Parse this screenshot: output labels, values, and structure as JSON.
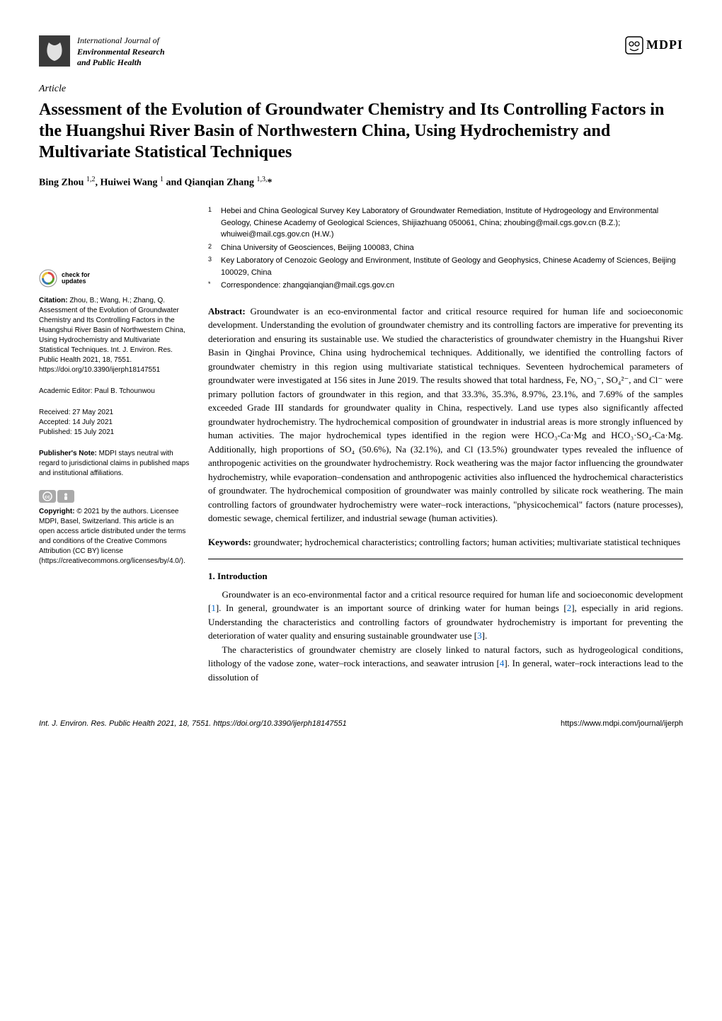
{
  "header": {
    "journal_intl": "International Journal of",
    "journal_name1": "Environmental Research",
    "journal_name2": "and Public Health",
    "publisher": "MDPI"
  },
  "article_label": "Article",
  "title": "Assessment of the Evolution of Groundwater Chemistry and Its Controlling Factors in the Huangshui River Basin of Northwestern China, Using Hydrochemistry and Multivariate Statistical Techniques",
  "authors_html": "Bing Zhou <sup>1,2</sup>, Huiwei Wang <sup>1</sup> and Qianqian Zhang <sup>1,3,</sup>*",
  "affiliations": [
    {
      "num": "1",
      "text": "Hebei and China Geological Survey Key Laboratory of Groundwater Remediation, Institute of Hydrogeology and Environmental Geology, Chinese Academy of Geological Sciences, Shijiazhuang 050061, China; zhoubing@mail.cgs.gov.cn (B.Z.); whuiwei@mail.cgs.gov.cn (H.W.)"
    },
    {
      "num": "2",
      "text": "China University of Geosciences, Beijing 100083, China"
    },
    {
      "num": "3",
      "text": "Key Laboratory of Cenozoic Geology and Environment, Institute of Geology and Geophysics, Chinese Academy of Sciences, Beijing 100029, China"
    },
    {
      "num": "*",
      "text": "Correspondence: zhangqianqian@mail.cgs.gov.cn"
    }
  ],
  "abstract_label": "Abstract:",
  "abstract": "Groundwater is an eco-environmental factor and critical resource required for human life and socioeconomic development. Understanding the evolution of groundwater chemistry and its controlling factors are imperative for preventing its deterioration and ensuring its sustainable use. We studied the characteristics of groundwater chemistry in the Huangshui River Basin in Qinghai Province, China using hydrochemical techniques. Additionally, we identified the controlling factors of groundwater chemistry in this region using multivariate statistical techniques. Seventeen hydrochemical parameters of groundwater were investigated at 156 sites in June 2019. The results showed that total hardness, Fe, NO₃⁻, SO₄²⁻, and Cl⁻ were primary pollution factors of groundwater in this region, and that 33.3%, 35.3%, 8.97%, 23.1%, and 7.69% of the samples exceeded Grade III standards for groundwater quality in China, respectively. Land use types also significantly affected groundwater hydrochemistry. The hydrochemical composition of groundwater in industrial areas is more strongly influenced by human activities. The major hydrochemical types identified in the region were HCO₃-Ca·Mg and HCO₃·SO₄-Ca·Mg. Additionally, high proportions of SO₄ (50.6%), Na (32.1%), and Cl (13.5%) groundwater types revealed the influence of anthropogenic activities on the groundwater hydrochemistry. Rock weathering was the major factor influencing the groundwater hydrochemistry, while evaporation–condensation and anthropogenic activities also influenced the hydrochemical characteristics of groundwater. The hydrochemical composition of groundwater was mainly controlled by silicate rock weathering. The main controlling factors of groundwater hydrochemistry were water–rock interactions, \"physicochemical\" factors (nature processes), domestic sewage, chemical fertilizer, and industrial sewage (human activities).",
  "keywords_label": "Keywords:",
  "keywords": "groundwater; hydrochemical characteristics; controlling factors; human activities; multivariate statistical techniques",
  "left": {
    "check_line1": "check for",
    "check_line2": "updates",
    "citation_label": "Citation:",
    "citation": "Zhou, B.; Wang, H.; Zhang, Q. Assessment of the Evolution of Groundwater Chemistry and Its Controlling Factors in the Huangshui River Basin of Northwestern China, Using Hydrochemistry and Multivariate Statistical Techniques. Int. J. Environ. Res. Public Health 2021, 18, 7551. https://doi.org/10.3390/ijerph18147551",
    "editor_label": "Academic Editor:",
    "editor": "Paul B. Tchounwou",
    "received_label": "Received:",
    "received": "27 May 2021",
    "accepted_label": "Accepted:",
    "accepted": "14 July 2021",
    "published_label": "Published:",
    "published": "15 July 2021",
    "pubnote_label": "Publisher's Note:",
    "pubnote": "MDPI stays neutral with regard to jurisdictional claims in published maps and institutional affiliations.",
    "copyright_label": "Copyright:",
    "copyright": "© 2021 by the authors. Licensee MDPI, Basel, Switzerland. This article is an open access article distributed under the terms and conditions of the Creative Commons Attribution (CC BY) license (https://creativecommons.org/licenses/by/4.0/)."
  },
  "section1_title": "1. Introduction",
  "para1": "Groundwater is an eco-environmental factor and a critical resource required for human life and socioeconomic development [1]. In general, groundwater is an important source of drinking water for human beings [2], especially in arid regions. Understanding the characteristics and controlling factors of groundwater hydrochemistry is important for preventing the deterioration of water quality and ensuring sustainable groundwater use [3].",
  "para2": "The characteristics of groundwater chemistry are closely linked to natural factors, such as hydrogeological conditions, lithology of the vadose zone, water–rock interactions, and seawater intrusion [4]. In general, water–rock interactions lead to the dissolution of",
  "footer": {
    "left": "Int. J. Environ. Res. Public Health 2021, 18, 7551. https://doi.org/10.3390/ijerph18147551",
    "right": "https://www.mdpi.com/journal/ijerph"
  },
  "colors": {
    "ref_link": "#0066cc",
    "text": "#000000",
    "bg": "#ffffff",
    "cc_bg": "#aaaaaa"
  }
}
